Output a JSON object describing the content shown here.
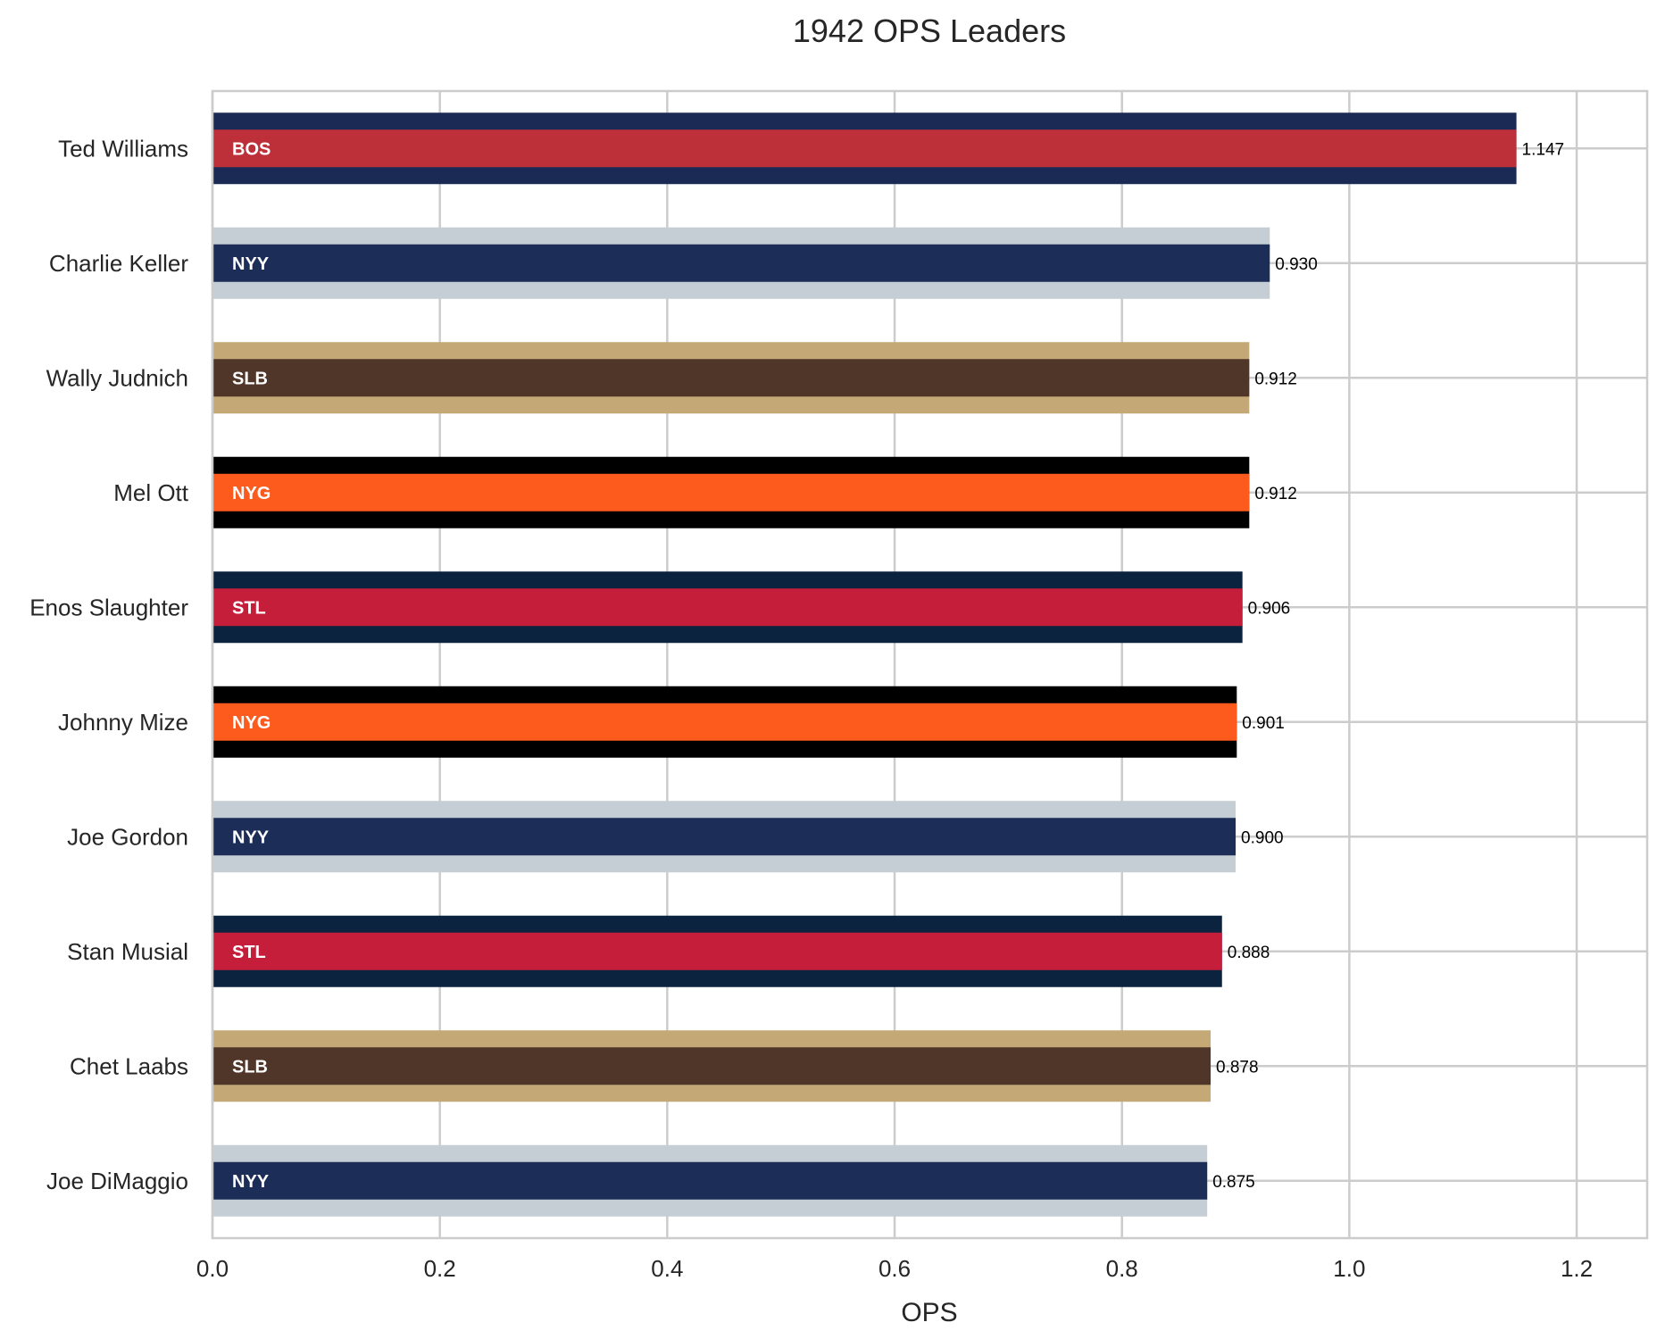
{
  "chart_data": {
    "type": "bar",
    "orientation": "horizontal",
    "title": "1942 OPS Leaders",
    "xlabel": "OPS",
    "ylabel": "",
    "xlim": [
      0,
      1.262
    ],
    "xticks": [
      "0.0",
      "0.2",
      "0.4",
      "0.6",
      "0.8",
      "1.0",
      "1.2"
    ],
    "xtick_values": [
      0,
      0.2,
      0.4,
      0.6,
      0.8,
      1.0,
      1.2
    ],
    "grid": true,
    "legend": "none",
    "bars": [
      {
        "player": "Ted Williams",
        "team": "BOS",
        "value": 1.147,
        "value_label": "1.147",
        "outer_color": "#1b2a55",
        "inner_color": "#bd3039"
      },
      {
        "player": "Charlie Keller",
        "team": "NYY",
        "value": 0.93,
        "value_label": "0.930",
        "outer_color": "#c4ced4",
        "inner_color": "#1c2d58"
      },
      {
        "player": "Wally Judnich",
        "team": "SLB",
        "value": 0.912,
        "value_label": "0.912",
        "outer_color": "#c4a876",
        "inner_color": "#4f3629"
      },
      {
        "player": "Mel Ott",
        "team": "NYG",
        "value": 0.912,
        "value_label": "0.912",
        "outer_color": "#000000",
        "inner_color": "#fd5a1e"
      },
      {
        "player": "Enos Slaughter",
        "team": "STL",
        "value": 0.906,
        "value_label": "0.906",
        "outer_color": "#0c2340",
        "inner_color": "#c41e3a"
      },
      {
        "player": "Johnny Mize",
        "team": "NYG",
        "value": 0.901,
        "value_label": "0.901",
        "outer_color": "#000000",
        "inner_color": "#fd5a1e"
      },
      {
        "player": "Joe Gordon",
        "team": "NYY",
        "value": 0.9,
        "value_label": "0.900",
        "outer_color": "#c4ced4",
        "inner_color": "#1c2d58"
      },
      {
        "player": "Stan Musial",
        "team": "STL",
        "value": 0.888,
        "value_label": "0.888",
        "outer_color": "#0c2340",
        "inner_color": "#c41e3a"
      },
      {
        "player": "Chet Laabs",
        "team": "SLB",
        "value": 0.878,
        "value_label": "0.878",
        "outer_color": "#c4a876",
        "inner_color": "#4f3629"
      },
      {
        "player": "Joe DiMaggio",
        "team": "NYY",
        "value": 0.875,
        "value_label": "0.875",
        "outer_color": "#c4ced4",
        "inner_color": "#1c2d58"
      }
    ]
  }
}
